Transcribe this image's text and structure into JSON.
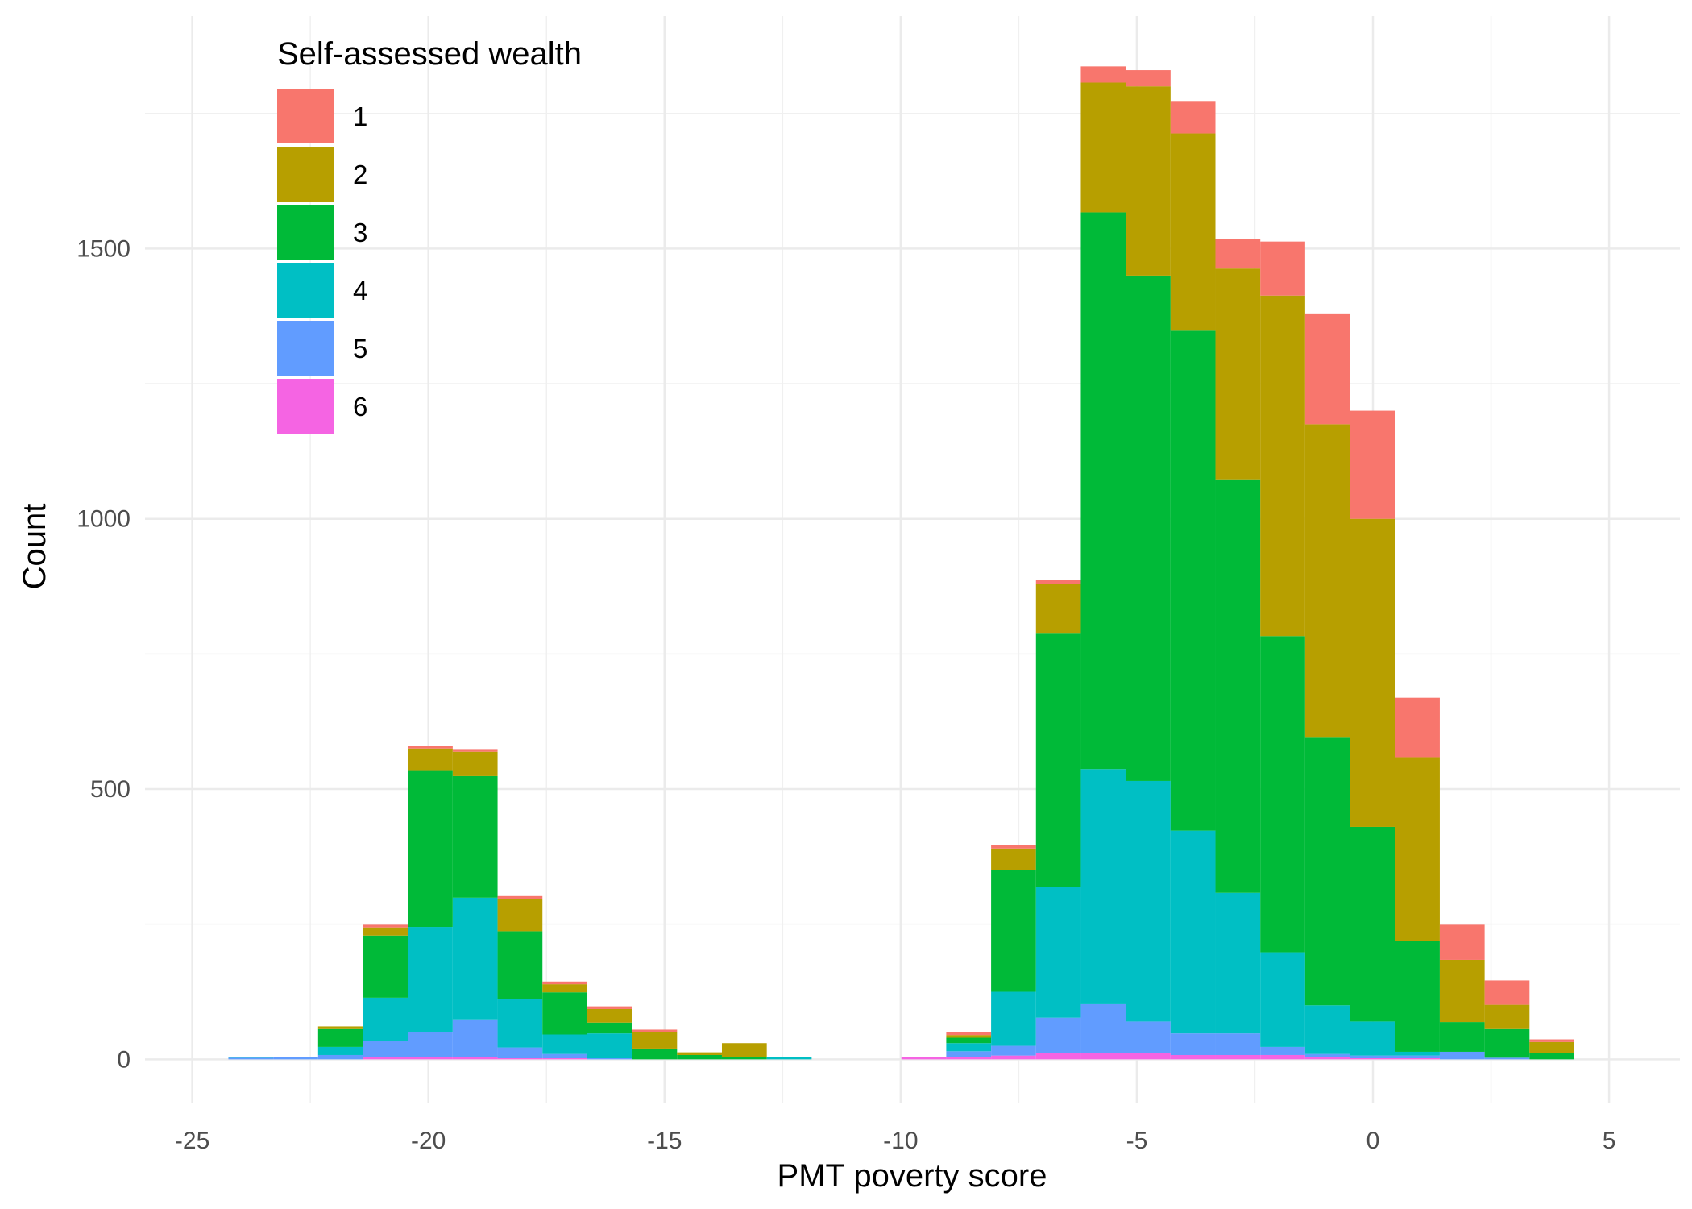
{
  "chart_data": {
    "type": "bar",
    "stacked": true,
    "histogram": true,
    "xlabel": "PMT poverty score",
    "ylabel": "Count",
    "xlim": [
      -26,
      6.5
    ],
    "ylim": [
      -80,
      1930
    ],
    "x_ticks": [
      -25,
      -20,
      -15,
      -10,
      -5,
      0,
      5
    ],
    "y_ticks": [
      0,
      500,
      1000,
      1500
    ],
    "bin_width": 0.95,
    "grid": true,
    "legend": {
      "title": "Self-assessed wealth",
      "placement": "top-left",
      "entries": [
        "1",
        "2",
        "3",
        "4",
        "5",
        "6"
      ]
    },
    "colors": [
      "#F8766D",
      "#B79F00",
      "#00BA38",
      "#00BFC4",
      "#619CFF",
      "#F564E3"
    ],
    "bin_centers": [
      -23.76,
      -22.81,
      -21.86,
      -20.91,
      -19.96,
      -19.01,
      -18.06,
      -17.11,
      -16.16,
      -15.21,
      -14.26,
      -13.31,
      -12.36,
      -11.41,
      -10.46,
      -9.51,
      -8.56,
      -7.61,
      -6.66,
      -5.71,
      -4.76,
      -3.81,
      -2.86,
      -1.91,
      -0.96,
      -0.01,
      0.94,
      1.89,
      2.84,
      3.79
    ],
    "series": [
      {
        "name": "6",
        "values": [
          0,
          0,
          0,
          4,
          4,
          4,
          2,
          2,
          0,
          0,
          0,
          0,
          0,
          0,
          0,
          5,
          5,
          7,
          12,
          12,
          12,
          8,
          8,
          8,
          5,
          2,
          2,
          0,
          0,
          0
        ]
      },
      {
        "name": "5",
        "values": [
          3,
          5,
          8,
          30,
          46,
          70,
          20,
          8,
          2,
          0,
          0,
          0,
          0,
          0,
          0,
          0,
          10,
          18,
          65,
          90,
          58,
          40,
          40,
          15,
          5,
          5,
          5,
          14,
          3,
          0
        ]
      },
      {
        "name": "4",
        "values": [
          2,
          0,
          15,
          80,
          195,
          225,
          90,
          36,
          46,
          0,
          0,
          0,
          4,
          0,
          0,
          0,
          15,
          100,
          242,
          435,
          445,
          375,
          260,
          175,
          90,
          63,
          7,
          0,
          0,
          0
        ]
      },
      {
        "name": "3",
        "values": [
          0,
          0,
          33,
          115,
          290,
          225,
          125,
          78,
          20,
          20,
          8,
          5,
          0,
          0,
          0,
          0,
          10,
          225,
          470,
          1030,
          935,
          925,
          765,
          585,
          495,
          360,
          205,
          55,
          53,
          12
        ]
      },
      {
        "name": "2",
        "values": [
          0,
          0,
          5,
          15,
          40,
          45,
          60,
          15,
          25,
          30,
          5,
          25,
          0,
          0,
          0,
          0,
          5,
          40,
          90,
          240,
          350,
          365,
          390,
          630,
          580,
          570,
          340,
          115,
          45,
          20
        ]
      },
      {
        "name": "1",
        "values": [
          0,
          0,
          0,
          5,
          5,
          5,
          5,
          5,
          5,
          5,
          0,
          0,
          0,
          0,
          0,
          0,
          5,
          7,
          8,
          30,
          30,
          60,
          55,
          100,
          205,
          200,
          110,
          65,
          45,
          5
        ]
      }
    ]
  }
}
